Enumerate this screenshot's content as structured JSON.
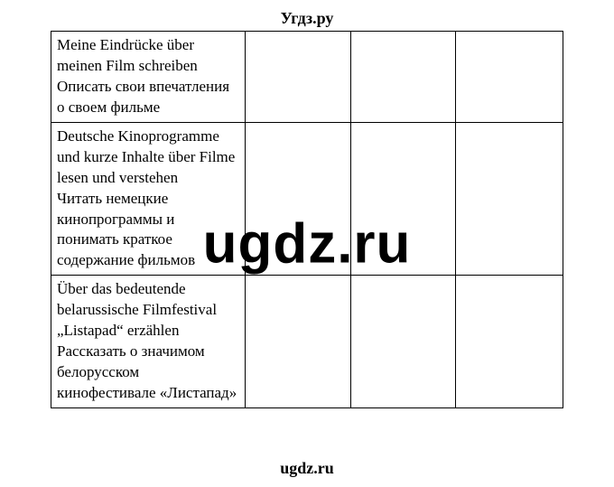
{
  "header": {
    "text": "Угдз.ру"
  },
  "footer": {
    "text": "ugdz.ru"
  },
  "watermark": {
    "text": "ugdz.ru"
  },
  "table": {
    "type": "table",
    "border_color": "#000000",
    "background_color": "#ffffff",
    "text_color": "#000000",
    "font_family": "Times New Roman",
    "cell_fontsize": 17,
    "column_widths_pct": [
      38,
      20.5,
      20.5,
      21
    ],
    "columns": [
      "col0",
      "col1",
      "col2",
      "col3"
    ],
    "rows": [
      {
        "c0": "Meine Eindrücke über meinen Film schreiben\nОписать свои впечатления о своем фильме",
        "c1": "",
        "c2": "",
        "c3": ""
      },
      {
        "c0": "Deutsche Kinoprogramme und kurze Inhalte über Filme lesen und verstehen\nЧитать немецкие кинопрограммы и понимать краткое содержание фильмов",
        "c1": "",
        "c2": "",
        "c3": ""
      },
      {
        "c0": "Über das bedeutende belarussische Filmfestival „Listapad“ erzählen\nРассказать о значимом белорусском кинофестивале «Листапад»",
        "c1": "",
        "c2": "",
        "c3": ""
      }
    ]
  }
}
